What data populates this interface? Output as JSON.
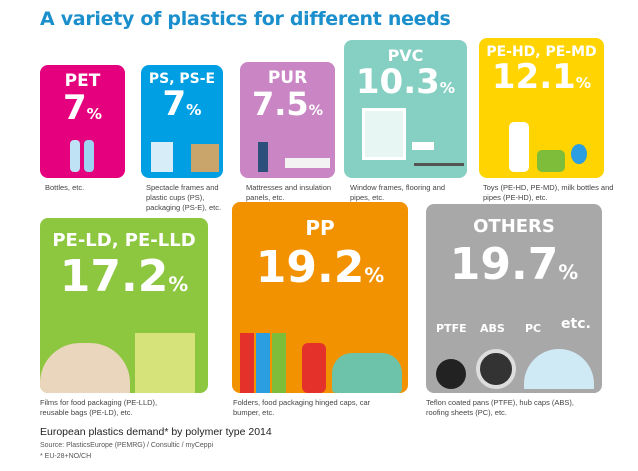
{
  "title": "A variety of plastics for different needs",
  "chart_data": {
    "type": "table",
    "title": "European plastics demand* by polymer type 2014",
    "categories": [
      "PET",
      "PS, PS-E",
      "PUR",
      "PVC",
      "PE-HD, PE-MD",
      "PE-LD, PE-LLD",
      "PP",
      "OTHERS"
    ],
    "values": [
      7,
      7,
      7.5,
      10.3,
      12.1,
      17.2,
      19.2,
      19.7
    ],
    "labels": [
      "7",
      "7",
      "7.5",
      "10.3",
      "12.1",
      "17.2",
      "19.2",
      "19.7"
    ],
    "unit": "%",
    "captions": [
      "Bottles, etc.",
      "Spectacle frames and plastic cups (PS), packaging (PS-E), etc.",
      "Mattresses and insulation panels, etc.",
      "Window frames, flooring and pipes, etc.",
      "Toys (PE-HD, PE-MD), milk bottles and pipes (PE-HD), etc.",
      "Films for food packaging (PE-LLD), reusable bags (PE-LD), etc.",
      "Folders, food packaging hinged caps, car bumper, etc.",
      "Teflon coated pans (PTFE), hub caps (ABS), roofing sheets (PC), etc."
    ],
    "colors": [
      "#e5007e",
      "#009fe3",
      "#c985c4",
      "#86cfc3",
      "#ffd400",
      "#8dc63f",
      "#f39200",
      "#a8a8a8"
    ]
  },
  "others_sub": [
    "PTFE",
    "ABS",
    "PC",
    "etc."
  ],
  "footer": {
    "heading": "European plastics demand* by polymer type 2014",
    "source": "Source: PlasticsEurope (PEMRG) / Consultic / myCeppi",
    "note": "* EU-28+NO/CH"
  }
}
